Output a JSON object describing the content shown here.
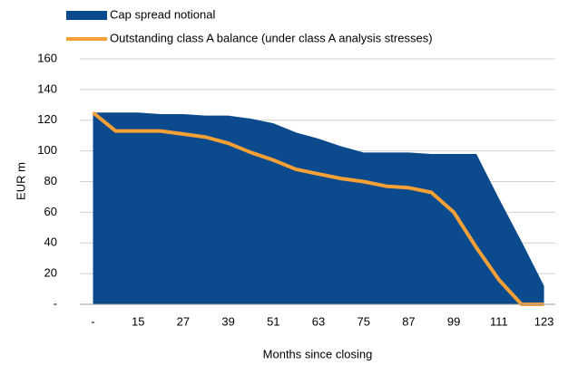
{
  "chart_data": {
    "type": "area-line",
    "x_label": "Months since closing",
    "y_label": "EUR m",
    "x": [
      3,
      9,
      15,
      21,
      27,
      33,
      39,
      45,
      51,
      57,
      63,
      69,
      75,
      81,
      87,
      93,
      99,
      105,
      111,
      117,
      123
    ],
    "series": [
      {
        "name": "Cap spread notional",
        "type": "area",
        "color": "#0b4a8c",
        "values": [
          125,
          125,
          125,
          124,
          124,
          123,
          123,
          121,
          118,
          112,
          108,
          103,
          99,
          99,
          99,
          98,
          98,
          98,
          69,
          41,
          12
        ]
      },
      {
        "name": "Outstanding class A balance (under class A analysis stresses)",
        "type": "line",
        "color": "#f7a035",
        "values": [
          125,
          113,
          113,
          113,
          111,
          109,
          105,
          99,
          94,
          88,
          85,
          82,
          80,
          77,
          76,
          73,
          60,
          37,
          16,
          0,
          0
        ]
      }
    ],
    "xlim": [
      -0.5,
      126
    ],
    "xticks": [
      {
        "value": 3,
        "label": "-"
      },
      15,
      27,
      39,
      51,
      63,
      75,
      87,
      99,
      111,
      123
    ],
    "ylim": [
      0,
      160
    ],
    "yticks": [
      {
        "value": 0,
        "label": "-"
      },
      20,
      40,
      60,
      80,
      100,
      120,
      140,
      160
    ],
    "grid": true,
    "legend": "top-left"
  }
}
